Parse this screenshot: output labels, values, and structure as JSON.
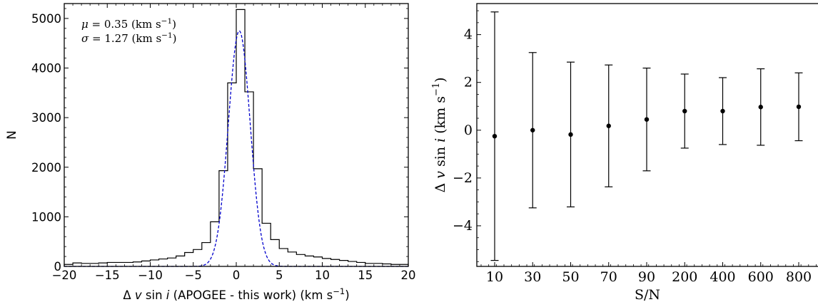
{
  "chart_data": [
    {
      "type": "histogram",
      "xlabel_parts": {
        "pre": "Δ ",
        "v": "v",
        "mid": " sin ",
        "i": "i",
        "post": " (APOGEE - this work) (km s",
        "sup": "−1",
        "end": ")"
      },
      "ylabel": "N",
      "xlim": [
        -20,
        20
      ],
      "ylim": [
        0,
        5300
      ],
      "xticks": [
        -20,
        -15,
        -10,
        -5,
        0,
        5,
        10,
        15,
        20
      ],
      "xtick_labels": [
        "−20",
        "−15",
        "−10",
        "−5",
        "0",
        "5",
        "10",
        "15",
        "20"
      ],
      "yticks": [
        0,
        1000,
        2000,
        3000,
        4000,
        5000
      ],
      "ytick_labels": [
        "0",
        "1000",
        "2000",
        "3000",
        "4000",
        "5000"
      ],
      "bin_edges": [
        -20,
        -19,
        -18,
        -17,
        -16,
        -15,
        -14,
        -13,
        -12,
        -11,
        -10,
        -9,
        -8,
        -7,
        -6,
        -5,
        -4,
        -3,
        -2,
        -1,
        0,
        1,
        2,
        3,
        4,
        5,
        6,
        7,
        8,
        9,
        10,
        11,
        12,
        13,
        14,
        15,
        16,
        17,
        18,
        19,
        20
      ],
      "counts": [
        40,
        70,
        60,
        60,
        70,
        80,
        80,
        80,
        90,
        110,
        130,
        150,
        170,
        210,
        280,
        340,
        480,
        900,
        1930,
        3700,
        5180,
        3520,
        1970,
        870,
        540,
        360,
        290,
        240,
        210,
        190,
        160,
        140,
        120,
        100,
        80,
        60,
        60,
        50,
        40,
        40
      ],
      "fit": {
        "mu": 0.35,
        "sigma": 1.27,
        "amplitude": 4750,
        "style": "dashed",
        "color": "#0000cc"
      },
      "annotation_lines": [
        {
          "sym": "μ",
          "text": " = 0.35 (km s",
          "sup": "−1",
          "end": ")"
        },
        {
          "sym": "σ",
          "text": " = 1.27 (km s",
          "sup": "−1",
          "end": ")"
        }
      ],
      "colors": {
        "histogram": "#000000",
        "fit": "#0000cc"
      }
    },
    {
      "type": "errorbar",
      "categories": [
        "10",
        "30",
        "50",
        "70",
        "90",
        "200",
        "400",
        "600",
        "800"
      ],
      "values": [
        -0.25,
        0.0,
        -0.18,
        0.18,
        0.45,
        0.8,
        0.8,
        0.97,
        0.98
      ],
      "errors": [
        5.2,
        3.25,
        3.03,
        2.55,
        2.15,
        1.55,
        1.4,
        1.6,
        1.42
      ],
      "xlabel": "S/N",
      "ylabel_parts": {
        "pre": "Δ ",
        "v": "v",
        "mid": " sin ",
        "i": "i",
        "post": " (km s",
        "sup": "−1",
        "end": ")"
      },
      "ylim": [
        -5.7,
        5.3
      ],
      "yticks": [
        -4,
        -2,
        0,
        2,
        4
      ],
      "ytick_labels": [
        "−4",
        "−2",
        "0",
        "2",
        "4"
      ],
      "colors": {
        "marker": "#000000"
      }
    }
  ]
}
